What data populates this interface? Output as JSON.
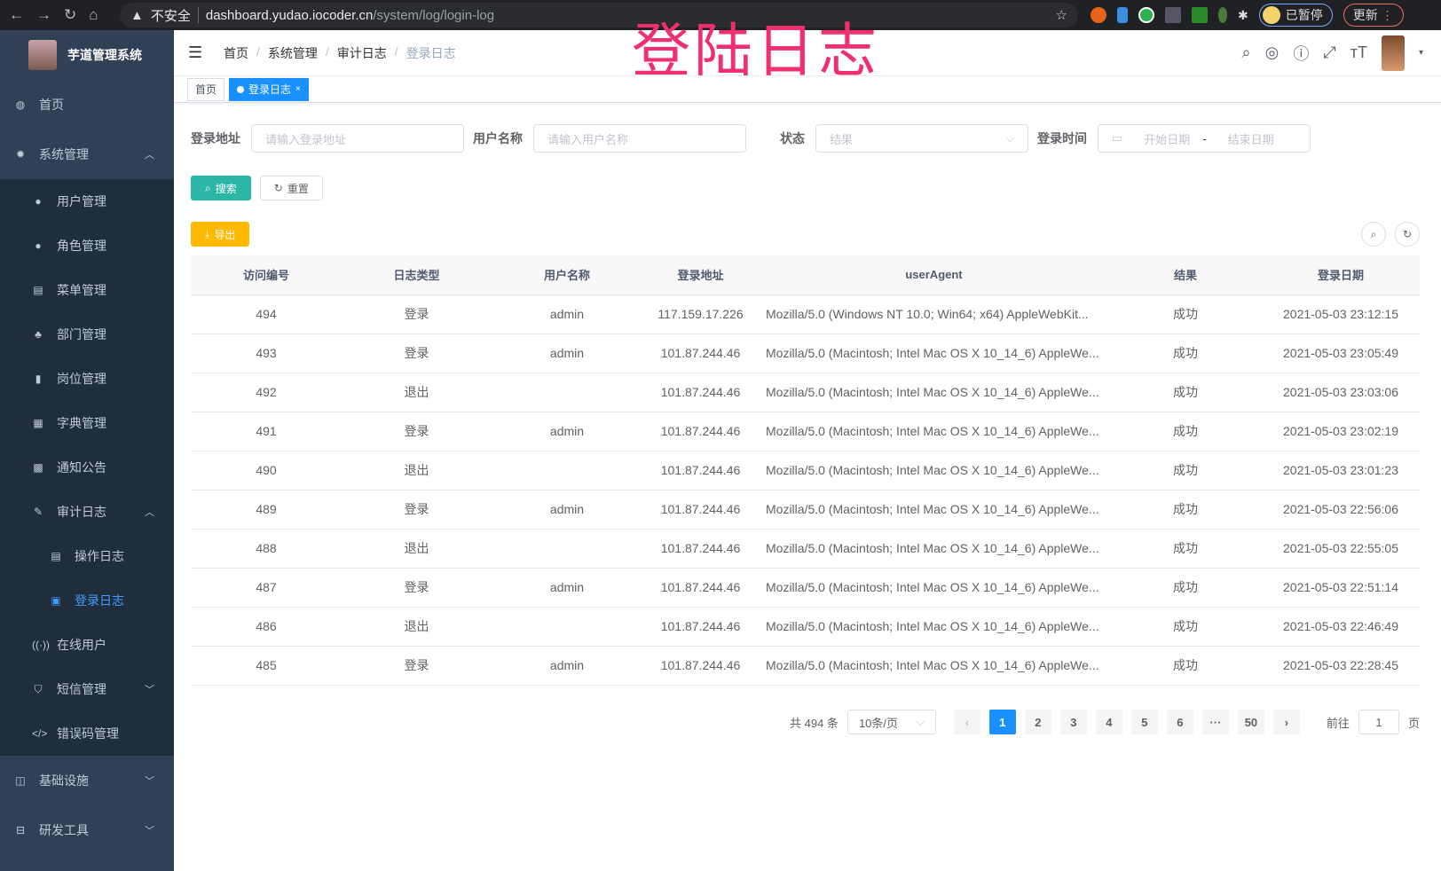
{
  "browser": {
    "insecure": "不安全",
    "host": "dashboard.yudao.iocoder.cn",
    "path": "/system/log/login-log",
    "paused": "已暂停",
    "update": "更新"
  },
  "overlay_title": "登陆日志",
  "sidebar": {
    "title": "芋道管理系统",
    "home": "首页",
    "system": "系统管理",
    "system_items": [
      "用户管理",
      "角色管理",
      "菜单管理",
      "部门管理",
      "岗位管理",
      "字典管理",
      "通知公告"
    ],
    "audit": "审计日志",
    "audit_items": [
      "操作日志",
      "登录日志"
    ],
    "after_items": [
      "在线用户",
      "短信管理",
      "错误码管理"
    ],
    "bottom_items": [
      "基础设施",
      "研发工具"
    ]
  },
  "breadcrumb": [
    "首页",
    "系统管理",
    "审计日志",
    "登录日志"
  ],
  "tags": [
    "首页",
    "登录日志"
  ],
  "filters": {
    "ip_label": "登录地址",
    "ip_placeholder": "请输入登录地址",
    "user_label": "用户名称",
    "user_placeholder": "请输入用户名称",
    "status_label": "状态",
    "status_placeholder": "结果",
    "time_label": "登录时间",
    "start_placeholder": "开始日期",
    "range_sep": "-",
    "end_placeholder": "结束日期"
  },
  "buttons": {
    "search": "搜索",
    "reset": "重置",
    "export": "导出"
  },
  "table": {
    "columns": [
      "访问编号",
      "日志类型",
      "用户名称",
      "登录地址",
      "userAgent",
      "结果",
      "登录日期"
    ],
    "rows": [
      [
        "494",
        "登录",
        "admin",
        "117.159.17.226",
        "Mozilla/5.0 (Windows NT 10.0; Win64; x64) AppleWebKit...",
        "成功",
        "2021-05-03 23:12:15"
      ],
      [
        "493",
        "登录",
        "admin",
        "101.87.244.46",
        "Mozilla/5.0 (Macintosh; Intel Mac OS X 10_14_6) AppleWe...",
        "成功",
        "2021-05-03 23:05:49"
      ],
      [
        "492",
        "退出",
        "",
        "101.87.244.46",
        "Mozilla/5.0 (Macintosh; Intel Mac OS X 10_14_6) AppleWe...",
        "成功",
        "2021-05-03 23:03:06"
      ],
      [
        "491",
        "登录",
        "admin",
        "101.87.244.46",
        "Mozilla/5.0 (Macintosh; Intel Mac OS X 10_14_6) AppleWe...",
        "成功",
        "2021-05-03 23:02:19"
      ],
      [
        "490",
        "退出",
        "",
        "101.87.244.46",
        "Mozilla/5.0 (Macintosh; Intel Mac OS X 10_14_6) AppleWe...",
        "成功",
        "2021-05-03 23:01:23"
      ],
      [
        "489",
        "登录",
        "admin",
        "101.87.244.46",
        "Mozilla/5.0 (Macintosh; Intel Mac OS X 10_14_6) AppleWe...",
        "成功",
        "2021-05-03 22:56:06"
      ],
      [
        "488",
        "退出",
        "",
        "101.87.244.46",
        "Mozilla/5.0 (Macintosh; Intel Mac OS X 10_14_6) AppleWe...",
        "成功",
        "2021-05-03 22:55:05"
      ],
      [
        "487",
        "登录",
        "admin",
        "101.87.244.46",
        "Mozilla/5.0 (Macintosh; Intel Mac OS X 10_14_6) AppleWe...",
        "成功",
        "2021-05-03 22:51:14"
      ],
      [
        "486",
        "退出",
        "",
        "101.87.244.46",
        "Mozilla/5.0 (Macintosh; Intel Mac OS X 10_14_6) AppleWe...",
        "成功",
        "2021-05-03 22:46:49"
      ],
      [
        "485",
        "登录",
        "admin",
        "101.87.244.46",
        "Mozilla/5.0 (Macintosh; Intel Mac OS X 10_14_6) AppleWe...",
        "成功",
        "2021-05-03 22:28:45"
      ]
    ]
  },
  "pagination": {
    "total": "共 494 条",
    "page_size": "10条/页",
    "pages": [
      "1",
      "2",
      "3",
      "4",
      "5",
      "6",
      "···",
      "50"
    ],
    "current": "1",
    "goto_label": "前往",
    "goto_value": "1",
    "page_suffix": "页"
  },
  "colors": {
    "sidebar_bg": "#304156",
    "submenu_bg": "#1f2d3d",
    "active": "#409eff",
    "primary": "#1890ff",
    "search_btn": "#2cb6a6",
    "export_btn": "#ffba00",
    "overlay": "#f0306e"
  }
}
